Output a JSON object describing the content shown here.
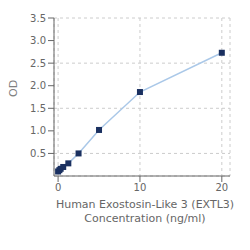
{
  "chart_data": {
    "type": "line",
    "x": [
      0,
      0.156,
      0.312,
      0.625,
      1.25,
      2.5,
      5,
      10,
      20
    ],
    "values": [
      0.1,
      0.13,
      0.16,
      0.2,
      0.28,
      0.5,
      1.02,
      1.86,
      2.73
    ],
    "xlabel": "Human Exostosin-Like 3 (EXTL3)\nConcentration (ng/ml)",
    "ylabel": "OD",
    "color": "#aac8e8",
    "colors": [
      "#1a3060",
      "#1a3060",
      "#1a3060",
      "#1a3060",
      "#1a3060",
      "#1a3060",
      "#1a3060",
      "#1a3060",
      "#1a3060"
    ],
    "marker": "square",
    "xlim": [
      -0.5,
      21
    ],
    "ylim": [
      0.0,
      3.5
    ],
    "xticks": [
      0,
      10,
      20
    ],
    "yticks": [
      0.5,
      {
        "value": 1.0,
        "label": "1.0"
      },
      1.5,
      {
        "value": 2.0,
        "label": "2.0"
      },
      2.5,
      {
        "value": 3.0,
        "label": "3.0"
      },
      3.5
    ],
    "grid": true
  }
}
